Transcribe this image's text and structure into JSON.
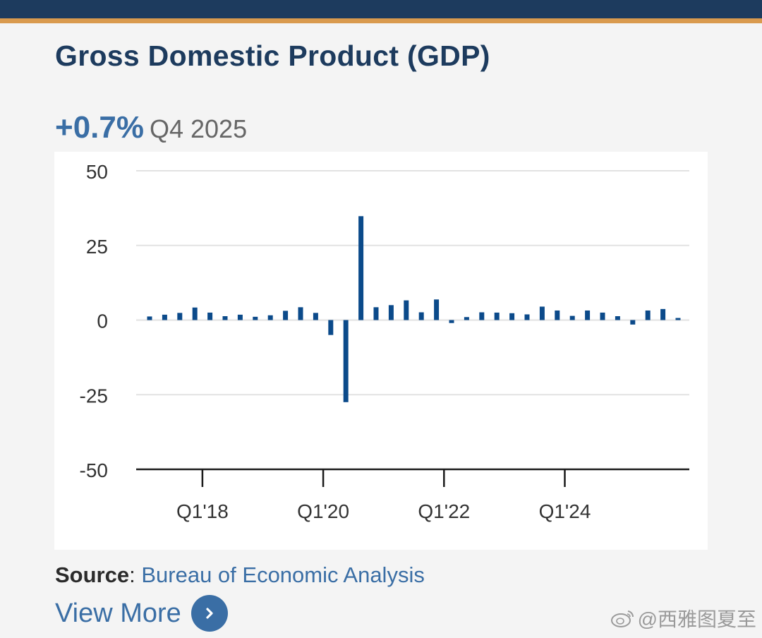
{
  "page": {
    "title": "Gross Domestic Product (GDP)",
    "headline_value": "+0.7%",
    "headline_period": "Q4 2025",
    "source_label": "Source",
    "source_sep": ": ",
    "source_name": "Bureau of Economic Analysis",
    "view_more": "View More",
    "watermark": "@西雅图夏至"
  },
  "colors": {
    "header_bar": "#1d3b5e",
    "accent_bar": "#d99a4e",
    "bar": "#0b4a8a",
    "link": "#3a6ea5"
  },
  "icons": {
    "view_more": "chevron-right-icon",
    "watermark": "weibo-icon"
  },
  "chart_data": {
    "type": "bar",
    "title": "",
    "xlabel": "",
    "ylabel": "",
    "ylim": [
      -50,
      50
    ],
    "yticks": [
      50,
      25,
      0,
      -25,
      -50
    ],
    "grid": true,
    "legend": "none",
    "xtick_labels": [
      {
        "label": "Q1'18",
        "category": "Q1 2018"
      },
      {
        "label": "Q1'20",
        "category": "Q1 2020"
      },
      {
        "label": "Q1'22",
        "category": "Q1 2022"
      },
      {
        "label": "Q1'24",
        "category": "Q1 2024"
      }
    ],
    "categories": [
      "Q1 2017",
      "Q2 2017",
      "Q3 2017",
      "Q4 2017",
      "Q1 2018",
      "Q2 2018",
      "Q3 2018",
      "Q4 2018",
      "Q1 2019",
      "Q2 2019",
      "Q3 2019",
      "Q4 2019",
      "Q1 2020",
      "Q2 2020",
      "Q3 2020",
      "Q4 2020",
      "Q1 2021",
      "Q2 2021",
      "Q3 2021",
      "Q4 2021",
      "Q1 2022",
      "Q2 2022",
      "Q3 2022",
      "Q4 2022",
      "Q1 2023",
      "Q2 2023",
      "Q3 2023",
      "Q4 2023",
      "Q1 2024",
      "Q2 2024",
      "Q3 2024",
      "Q4 2024",
      "Q1 2025",
      "Q2 2025",
      "Q3 2025",
      "Q4 2025"
    ],
    "series": [
      {
        "values": [
          1.2,
          1.8,
          2.4,
          4.2,
          2.5,
          1.3,
          1.8,
          1.1,
          1.6,
          3.1,
          4.3,
          2.4,
          -5.0,
          -27.5,
          34.8,
          4.3,
          5.0,
          6.6,
          2.6,
          6.9,
          -1.0,
          1.0,
          2.6,
          2.5,
          2.3,
          1.9,
          4.5,
          3.2,
          1.4,
          3.2,
          2.5,
          1.3,
          -1.5,
          3.2,
          3.7,
          0.7
        ]
      }
    ]
  }
}
